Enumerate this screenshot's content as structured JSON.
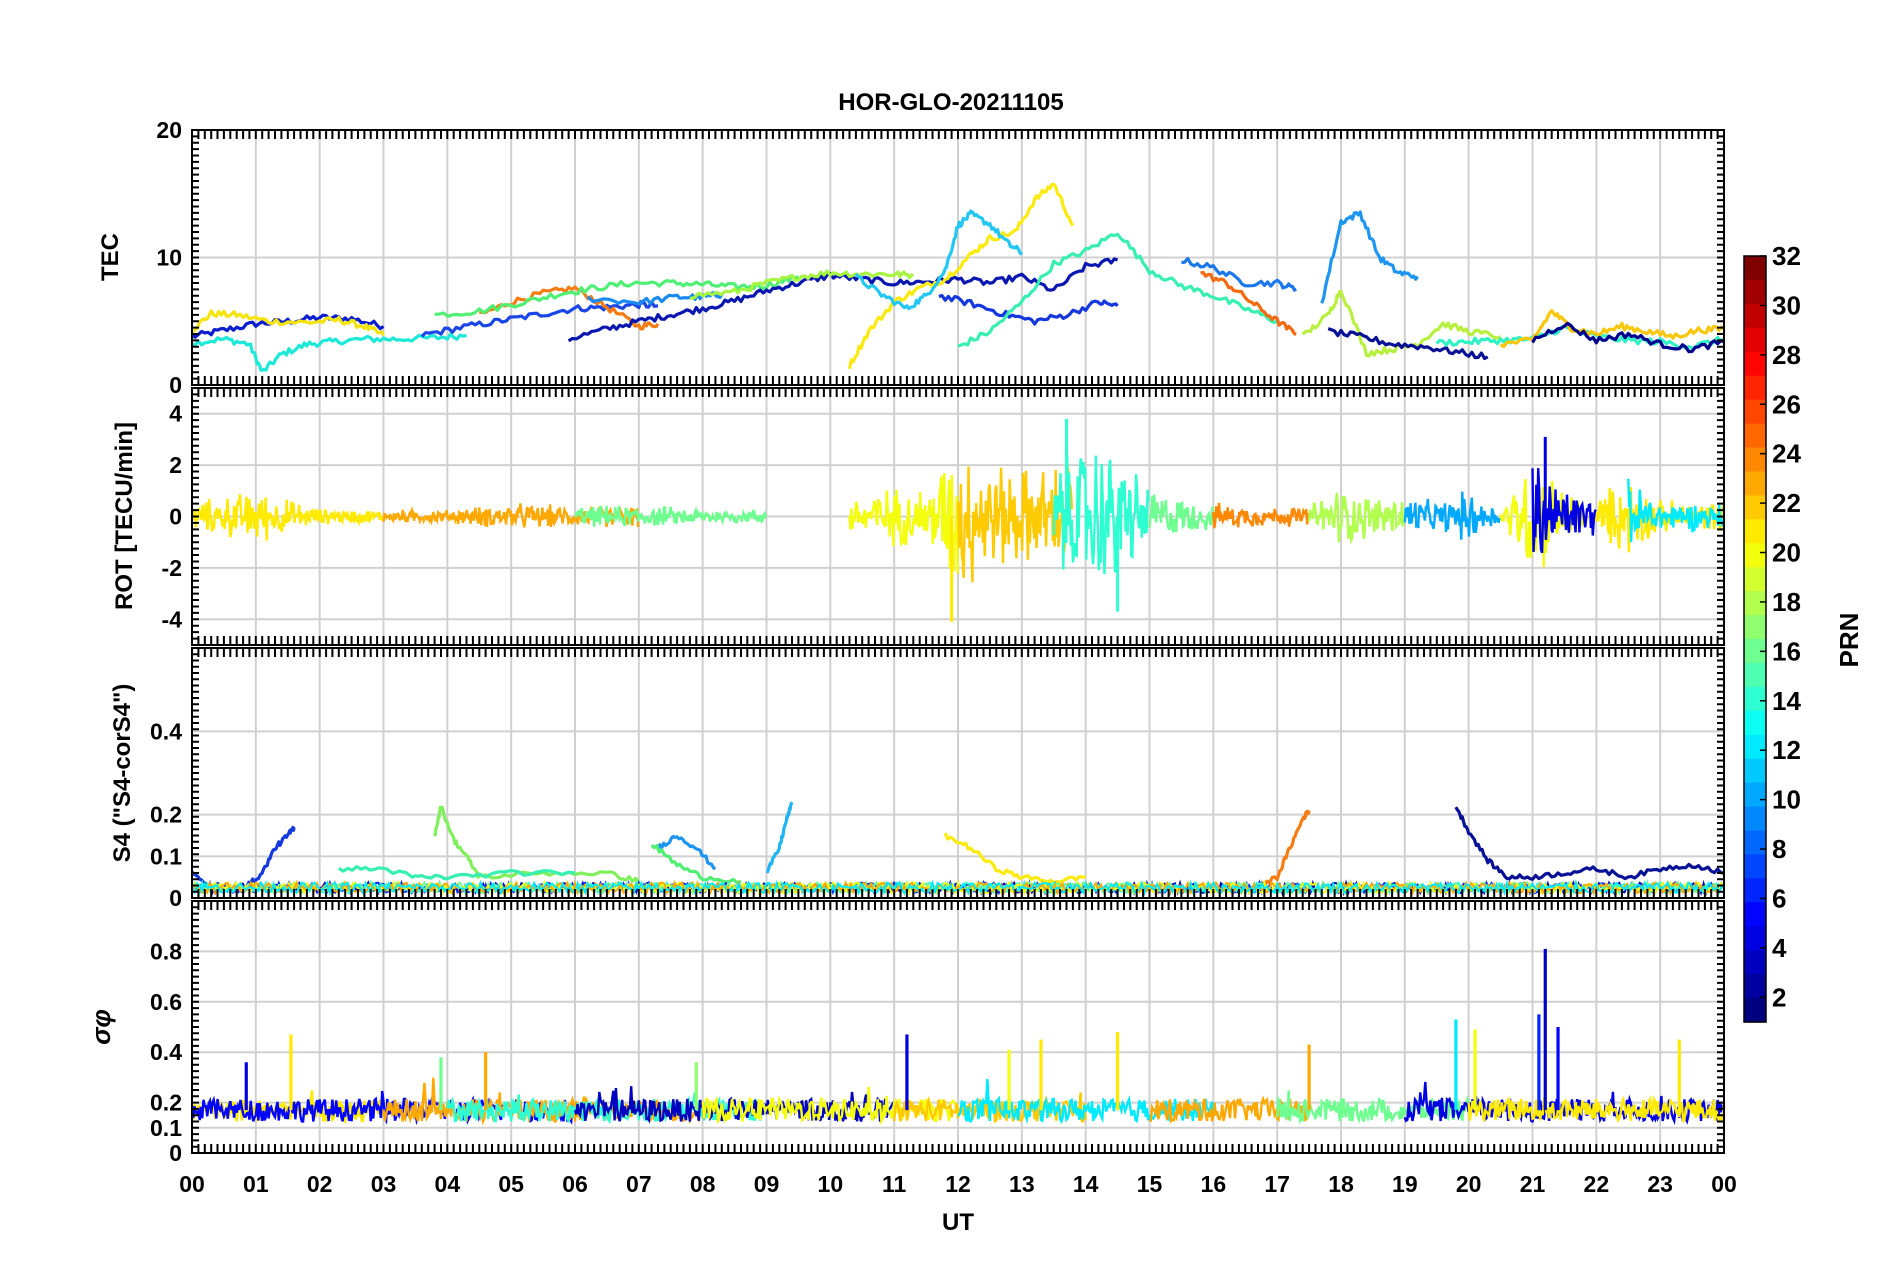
{
  "figure": {
    "title": "HOR-GLO-20211105",
    "xlabel": "UT",
    "x_tick_labels": [
      "00",
      "01",
      "02",
      "03",
      "04",
      "05",
      "06",
      "07",
      "08",
      "09",
      "10",
      "11",
      "12",
      "13",
      "14",
      "15",
      "16",
      "17",
      "18",
      "19",
      "20",
      "21",
      "22",
      "23",
      "00"
    ]
  },
  "colorbar": {
    "label": "PRN",
    "range": [
      1,
      32
    ],
    "tick_labels": [
      "2",
      "4",
      "6",
      "8",
      "10",
      "12",
      "14",
      "16",
      "18",
      "20",
      "22",
      "24",
      "26",
      "28",
      "30",
      "32"
    ],
    "colormap": "jet"
  },
  "chart_data": [
    {
      "type": "line",
      "panel": "TEC",
      "ylabel": "TEC",
      "ylim": [
        0,
        20
      ],
      "y_tick_labels": [
        "0",
        "10",
        "20"
      ],
      "xlim_hours": [
        0,
        24
      ],
      "grid": true,
      "series": [
        {
          "prn": 4,
          "color": "#0a1ccf",
          "x": [
            0,
            0.5,
            1,
            1.5,
            2,
            2.5,
            3
          ],
          "y": [
            3.8,
            4.3,
            4.8,
            5.0,
            5.3,
            5.2,
            4.6
          ]
        },
        {
          "prn": 13,
          "color": "#1ce9d8",
          "x": [
            0,
            0.5,
            0.9,
            1.1,
            1.4,
            1.8,
            2.2,
            2.7,
            3.2,
            3.8,
            4.3
          ],
          "y": [
            3.3,
            3.6,
            3.2,
            1.0,
            2.4,
            3.2,
            3.4,
            3.6,
            3.6,
            3.7,
            3.9
          ]
        },
        {
          "prn": 21,
          "color": "#f4e40c",
          "x": [
            0,
            0.3,
            0.7,
            1.2,
            1.8,
            2.3,
            2.7,
            3.0
          ],
          "y": [
            4.3,
            5.6,
            5.5,
            5.0,
            4.9,
            5.1,
            4.6,
            3.9
          ]
        },
        {
          "prn": 6,
          "color": "#1a46e8",
          "x": [
            3.6,
            4.2,
            4.8,
            5.4,
            6.0,
            6.5,
            7.0,
            7.3
          ],
          "y": [
            3.9,
            4.5,
            5.0,
            5.5,
            6.0,
            6.1,
            6.3,
            6.2
          ]
        },
        {
          "prn": 23,
          "color": "#f77d12",
          "x": [
            4.5,
            5.0,
            5.5,
            6.0,
            6.5,
            7.0,
            7.3
          ],
          "y": [
            5.5,
            6.5,
            7.2,
            7.6,
            6.1,
            4.6,
            4.8
          ]
        },
        {
          "prn": 16,
          "color": "#4fef74",
          "x": [
            3.8,
            4.5,
            5.2,
            5.8,
            6.3,
            6.9,
            7.5,
            8.0,
            8.5,
            9.0,
            9.5
          ],
          "y": [
            5.5,
            5.8,
            6.5,
            7.2,
            7.6,
            8.0,
            8.0,
            7.9,
            7.7,
            7.8,
            8.5
          ]
        },
        {
          "prn": 3,
          "color": "#0a16b0",
          "x": [
            5.9,
            6.5,
            7.0,
            7.5,
            8.0,
            8.5,
            9.0,
            9.5,
            10.0,
            10.5,
            11.0,
            11.5,
            12.0,
            12.5,
            13.0,
            13.5,
            14.0,
            14.5
          ],
          "y": [
            3.6,
            4.4,
            5.0,
            5.5,
            6.0,
            6.6,
            7.4,
            8.0,
            8.6,
            8.3,
            8.0,
            8.1,
            8.3,
            8.0,
            8.5,
            7.4,
            9.3,
            9.8
          ]
        },
        {
          "prn": 8,
          "color": "#1a8af0",
          "x": [
            6.2,
            7.0,
            7.6,
            8.0,
            8.3
          ],
          "y": [
            6.8,
            6.5,
            6.9,
            6.9,
            7.1
          ]
        },
        {
          "prn": 17,
          "color": "#a6f542",
          "x": [
            7.8,
            8.5,
            9.0,
            9.5,
            10.0,
            10.5,
            11.0,
            11.3
          ],
          "y": [
            7.0,
            7.3,
            8.0,
            8.5,
            8.8,
            8.7,
            8.7,
            8.6
          ]
        },
        {
          "prn": 20,
          "color": "#fbea0e",
          "x": [
            10.3,
            10.6,
            11.0,
            11.4,
            11.8,
            12.2,
            12.5,
            12.9,
            13.2,
            13.5,
            13.8
          ],
          "y": [
            1.5,
            4.2,
            6.5,
            7.6,
            8.3,
            10.2,
            11.5,
            12.0,
            14.5,
            15.8,
            12.5
          ]
        },
        {
          "prn": 12,
          "color": "#22c7f3",
          "x": [
            10.4,
            10.8,
            11.2,
            11.5,
            11.8,
            12.0,
            12.2,
            12.5,
            12.8,
            13.0
          ],
          "y": [
            8.5,
            7.1,
            6.0,
            7.0,
            9.0,
            12.5,
            13.4,
            12.6,
            11.0,
            10.4
          ]
        },
        {
          "prn": 5,
          "color": "#1438de",
          "x": [
            11.7,
            12.2,
            12.7,
            13.2,
            13.7,
            14.2,
            14.5
          ],
          "y": [
            7.0,
            6.4,
            5.6,
            5.0,
            5.5,
            6.5,
            6.2
          ]
        },
        {
          "prn": 14,
          "color": "#36efb0",
          "x": [
            12.0,
            12.5,
            13.0,
            13.5,
            14.0,
            14.5,
            15.0,
            15.5,
            16.0,
            16.5,
            17.0
          ],
          "y": [
            3.0,
            4.2,
            6.5,
            9.5,
            10.5,
            12.0,
            9.0,
            7.8,
            7.0,
            6.0,
            5.0
          ]
        },
        {
          "prn": 24,
          "color": "#f36a10",
          "x": [
            15.8,
            16.2,
            16.6,
            17.0,
            17.3
          ],
          "y": [
            8.8,
            8.0,
            6.5,
            5.0,
            4.0
          ]
        },
        {
          "prn": 9,
          "color": "#1b78ec",
          "x": [
            15.5,
            16.0,
            16.5,
            17.0,
            17.3
          ],
          "y": [
            9.8,
            9.2,
            8.0,
            8.0,
            7.5
          ]
        },
        {
          "prn": 10,
          "color": "#1d95f2",
          "x": [
            17.7,
            18.0,
            18.3,
            18.6,
            18.9,
            19.2
          ],
          "y": [
            6.5,
            12.8,
            13.5,
            10.0,
            8.8,
            8.5
          ]
        },
        {
          "prn": 18,
          "color": "#b8f03e",
          "x": [
            17.4,
            17.8,
            18.0,
            18.4,
            18.8,
            19.2,
            19.6,
            20.0,
            20.5
          ],
          "y": [
            3.8,
            5.5,
            7.5,
            2.5,
            2.8,
            3.2,
            4.8,
            4.2,
            3.8
          ]
        },
        {
          "prn": 2,
          "color": "#081195",
          "x": [
            17.8,
            18.3,
            18.8,
            19.3,
            19.8,
            20.3
          ],
          "y": [
            4.2,
            3.8,
            3.2,
            3.0,
            2.6,
            2.2
          ]
        },
        {
          "prn": 15,
          "color": "#2ef1c4",
          "x": [
            19.5,
            20.0,
            20.5,
            21.0,
            21.5,
            22.0,
            22.5,
            23.0,
            23.5,
            24.0
          ],
          "y": [
            3.3,
            3.4,
            3.5,
            3.6,
            4.5,
            3.8,
            3.5,
            3.4,
            3.0,
            3.6
          ]
        },
        {
          "prn": 22,
          "color": "#f8c70c",
          "x": [
            20.5,
            21.0,
            21.3,
            21.6,
            22.0,
            22.4,
            22.8,
            23.2,
            23.6,
            24.0
          ],
          "y": [
            3.2,
            3.5,
            5.8,
            4.5,
            4.0,
            4.6,
            4.2,
            3.8,
            4.3,
            4.4
          ]
        },
        {
          "prn": 1,
          "color": "#00008f",
          "x": [
            21.0,
            21.5,
            22.0,
            22.5,
            23.0,
            23.5,
            24.0
          ],
          "y": [
            3.5,
            4.8,
            3.5,
            4.0,
            3.2,
            2.8,
            3.4
          ]
        }
      ]
    },
    {
      "type": "line",
      "panel": "ROT",
      "ylabel": "ROT [TECU/min]",
      "ylim": [
        -5,
        5
      ],
      "y_tick_labels": [
        "-4",
        "-2",
        "0",
        "2",
        "4"
      ],
      "xlim_hours": [
        0,
        24
      ],
      "grid": true,
      "activity_envelope": {
        "x": [
          0,
          1,
          2,
          3,
          4,
          5,
          6,
          7,
          8,
          9,
          10,
          10.5,
          11,
          11.5,
          12,
          12.5,
          13,
          13.5,
          14,
          14.5,
          15,
          15.5,
          16,
          17,
          17.5,
          18,
          18.5,
          19,
          19.5,
          20,
          20.5,
          21,
          21.5,
          22,
          22.5,
          23,
          24
        ],
        "amplitude": [
          0.6,
          1.2,
          0.35,
          0.3,
          0.3,
          0.6,
          0.45,
          0.5,
          0.35,
          0.3,
          0.3,
          1.1,
          1.3,
          1.3,
          3.5,
          2.4,
          2.2,
          2.2,
          3.5,
          3.0,
          1.3,
          0.8,
          0.6,
          0.4,
          0.5,
          1.4,
          0.9,
          1.0,
          0.6,
          1.2,
          0.3,
          2.8,
          1.2,
          0.9,
          1.8,
          0.7,
          0.6
        ],
        "peaks": [
          {
            "x": 11.9,
            "y": -4.1,
            "prn": 21
          },
          {
            "x": 13.7,
            "y": 3.8,
            "prn": 14
          },
          {
            "x": 14.5,
            "y": -3.7,
            "prn": 14
          },
          {
            "x": 21.2,
            "y": 3.1,
            "prn": 4
          }
        ]
      }
    },
    {
      "type": "line",
      "panel": "S4",
      "ylabel": "S4 (\"S4-corS4\")",
      "ylim": [
        0,
        0.6
      ],
      "y_tick_labels": [
        "0",
        "0.1",
        "0.2",
        "0.4"
      ],
      "xlim_hours": [
        0,
        24
      ],
      "grid": true,
      "series": [
        {
          "prn": 5,
          "color": "#1438de",
          "x": [
            0,
            0.3,
            0.8,
            1.1,
            1.3,
            1.5,
            1.6
          ],
          "y": [
            0.06,
            0.02,
            0.02,
            0.06,
            0.12,
            0.15,
            0.17
          ]
        },
        {
          "prn": 17,
          "color": "#7ff05a",
          "x": [
            3.8,
            3.9,
            4.1,
            4.3,
            4.5,
            5.5,
            6.5,
            7.0
          ],
          "y": [
            0.15,
            0.22,
            0.14,
            0.1,
            0.05,
            0.06,
            0.06,
            0.04
          ]
        },
        {
          "prn": 14,
          "color": "#36efb0",
          "x": [
            2.3,
            3.0,
            3.5,
            4.0,
            5.0,
            6.0
          ],
          "y": [
            0.07,
            0.07,
            0.05,
            0.05,
            0.06,
            0.06
          ]
        },
        {
          "prn": 10,
          "color": "#1d95f2",
          "x": [
            7.3,
            7.6,
            7.9,
            8.2
          ],
          "y": [
            0.12,
            0.15,
            0.12,
            0.07
          ]
        },
        {
          "prn": 16,
          "color": "#4fef74",
          "x": [
            7.2,
            7.6,
            8.0,
            8.6
          ],
          "y": [
            0.13,
            0.08,
            0.05,
            0.04
          ]
        },
        {
          "prn": 11,
          "color": "#1fb4f4",
          "x": [
            9.0,
            9.2,
            9.3,
            9.4
          ],
          "y": [
            0.06,
            0.12,
            0.18,
            0.23
          ]
        },
        {
          "prn": 20,
          "color": "#fbea0e",
          "x": [
            11.8,
            12.2,
            12.6,
            13.0,
            13.5,
            14.0
          ],
          "y": [
            0.15,
            0.12,
            0.07,
            0.05,
            0.04,
            0.05
          ]
        },
        {
          "prn": 23,
          "color": "#f77d12",
          "x": [
            16.0,
            16.6,
            17.0,
            17.2,
            17.4,
            17.5
          ],
          "y": [
            0.02,
            0.02,
            0.05,
            0.12,
            0.19,
            0.21
          ]
        },
        {
          "prn": 2,
          "color": "#081195",
          "x": [
            19.8,
            20.0,
            20.3,
            20.6,
            21.0,
            21.5,
            22.0,
            22.5,
            23.0,
            23.5,
            24.0
          ],
          "y": [
            0.22,
            0.16,
            0.09,
            0.05,
            0.05,
            0.06,
            0.07,
            0.05,
            0.07,
            0.08,
            0.06
          ]
        }
      ]
    },
    {
      "type": "line",
      "panel": "sigma_phi",
      "ylabel": "σφ",
      "ylim": [
        0,
        1
      ],
      "y_tick_labels": [
        "0",
        "0.1",
        "0.2",
        "0.4",
        "0.6",
        "0.8"
      ],
      "xlim_hours": [
        0,
        24
      ],
      "grid": true,
      "baseline": 0.17,
      "spikes": [
        {
          "x": 0.85,
          "y": 0.36,
          "prn": 4
        },
        {
          "x": 1.55,
          "y": 0.47,
          "prn": 21
        },
        {
          "x": 3.9,
          "y": 0.38,
          "prn": 16
        },
        {
          "x": 4.6,
          "y": 0.4,
          "prn": 23
        },
        {
          "x": 7.9,
          "y": 0.36,
          "prn": 17
        },
        {
          "x": 11.2,
          "y": 0.47,
          "prn": 4
        },
        {
          "x": 12.8,
          "y": 0.41,
          "prn": 20
        },
        {
          "x": 13.3,
          "y": 0.45,
          "prn": 21
        },
        {
          "x": 14.5,
          "y": 0.48,
          "prn": 21
        },
        {
          "x": 17.5,
          "y": 0.43,
          "prn": 23
        },
        {
          "x": 19.8,
          "y": 0.53,
          "prn": 12
        },
        {
          "x": 20.1,
          "y": 0.49,
          "prn": 20
        },
        {
          "x": 21.1,
          "y": 0.55,
          "prn": 6
        },
        {
          "x": 21.2,
          "y": 0.81,
          "prn": 3
        },
        {
          "x": 21.4,
          "y": 0.5,
          "prn": 5
        },
        {
          "x": 23.3,
          "y": 0.45,
          "prn": 21
        }
      ]
    }
  ]
}
